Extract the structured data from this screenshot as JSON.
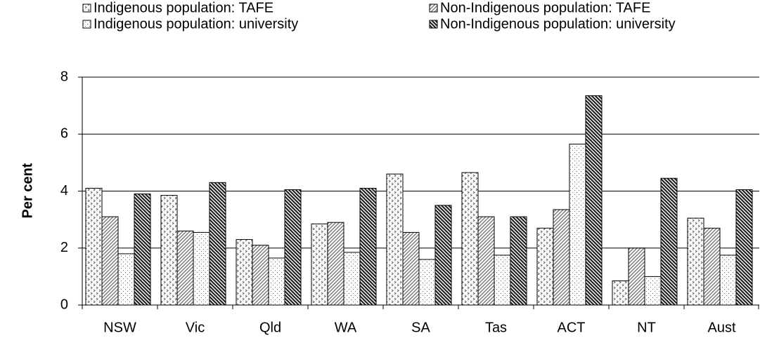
{
  "chart_data": {
    "type": "bar",
    "y_label": "Per cent",
    "categories": [
      "NSW",
      "Vic",
      "Qld",
      "WA",
      "SA",
      "Tas",
      "ACT",
      "NT",
      "Aust"
    ],
    "series": [
      {
        "name": "Indigenous population: TAFE",
        "color": "#555555",
        "values": [
          4.1,
          3.85,
          2.3,
          2.85,
          4.6,
          4.65,
          2.7,
          0.85,
          3.05
        ]
      },
      {
        "name": "Non-Indigenous population: TAFE",
        "color": "#777777",
        "values": [
          3.1,
          2.6,
          2.1,
          2.9,
          2.55,
          3.1,
          3.35,
          2.0,
          2.7
        ]
      },
      {
        "name": "Indigenous population: university",
        "color": "#666666",
        "values": [
          1.8,
          2.55,
          1.65,
          1.85,
          1.6,
          1.75,
          5.65,
          1.0,
          1.75
        ]
      },
      {
        "name": "Non-Indigenous population: university",
        "color": "#222222",
        "values": [
          3.9,
          4.3,
          4.05,
          4.1,
          3.5,
          3.1,
          7.35,
          4.45,
          4.05
        ]
      }
    ],
    "ylim": [
      0,
      8
    ],
    "yticks": [
      0,
      2,
      4,
      6,
      8
    ],
    "grid": true
  }
}
